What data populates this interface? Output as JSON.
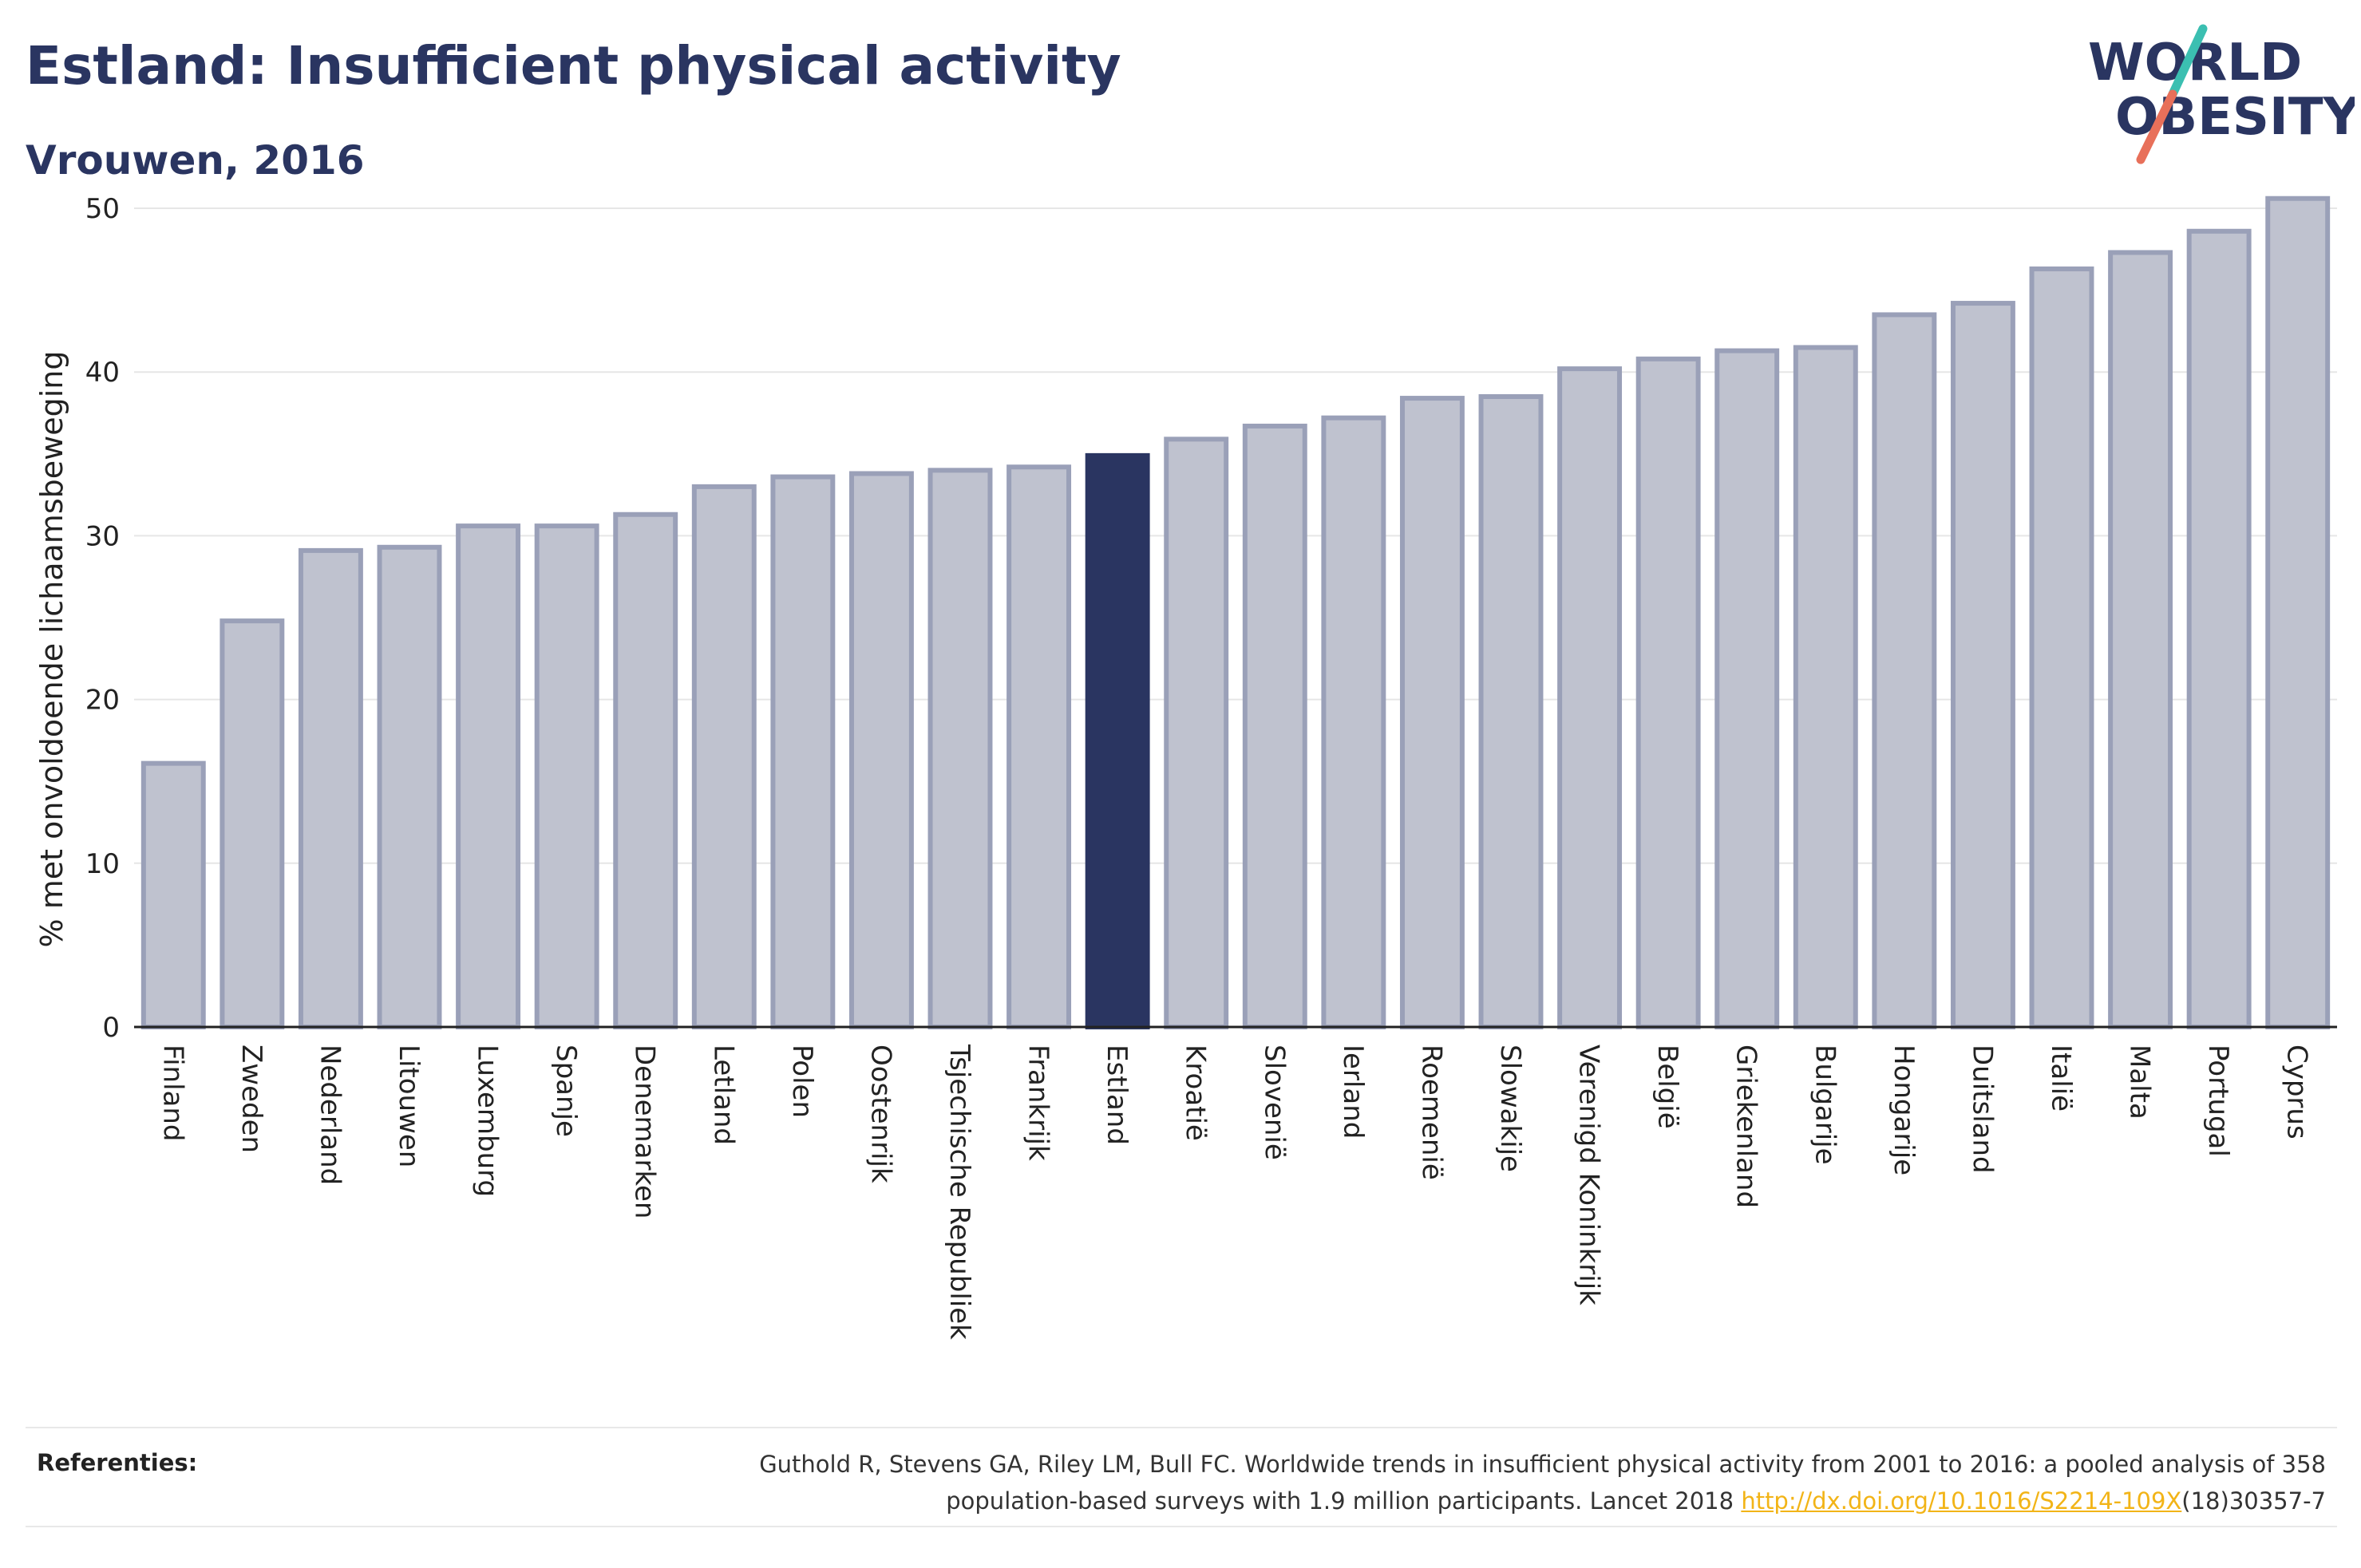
{
  "header": {
    "title": "Estland: Insufficient physical activity",
    "subtitle": "Vrouwen, 2016"
  },
  "logo": {
    "line1": "WORLD",
    "line2": "OBESITY",
    "colors": {
      "text": "#2a3561",
      "slash_teal": "#3bbfb1",
      "slash_coral": "#e8705a"
    }
  },
  "colors": {
    "bar_default": "#bfc2cf",
    "bar_default_stroke": "#9aa0b8",
    "bar_highlight": "#2a3561",
    "gridline": "#e6e6e6",
    "axis": "#222222",
    "link": "#f2b417"
  },
  "chart_data": {
    "type": "bar",
    "title": "Estland: Insufficient physical activity",
    "subtitle": "Vrouwen, 2016",
    "xlabel": "",
    "ylabel": "% met onvoldoende lichaamsbeweging",
    "ylim": [
      0,
      52
    ],
    "yticks": [
      0,
      10,
      20,
      30,
      40,
      50
    ],
    "grid": true,
    "highlight": "Estland",
    "categories": [
      "Finland",
      "Zweden",
      "Nederland",
      "Litouwen",
      "Luxemburg",
      "Spanje",
      "Denemarken",
      "Letland",
      "Polen",
      "Oostenrijk",
      "Tsjechische Republiek",
      "Frankrijk",
      "Estland",
      "Kroatië",
      "Slovenië",
      "Ierland",
      "Roemenië",
      "Slowakije",
      "Verenigd Koninkrijk",
      "België",
      "Griekenland",
      "Bulgarije",
      "Hongarije",
      "Duitsland",
      "Italië",
      "Malta",
      "Portugal",
      "Cyprus"
    ],
    "values": [
      16.1,
      24.8,
      29.1,
      29.3,
      30.6,
      30.6,
      31.3,
      33.0,
      33.6,
      33.8,
      34.0,
      34.2,
      34.9,
      35.9,
      36.7,
      37.2,
      38.4,
      38.5,
      40.2,
      40.8,
      41.3,
      41.5,
      43.5,
      44.2,
      46.3,
      47.3,
      48.6,
      50.6
    ]
  },
  "references": {
    "label": "Referenties:",
    "text_line1": "Guthold R, Stevens GA, Riley LM, Bull FC. Worldwide trends in insufficient physical activity from 2001 to 2016: a pooled analysis of 358",
    "text_line2_pre": "population-based surveys with 1.9 million participants. Lancet 2018 ",
    "link_text": "http://dx.doi.org/10.1016/S2214-109X",
    "text_line2_post": "(18)30357-7"
  }
}
